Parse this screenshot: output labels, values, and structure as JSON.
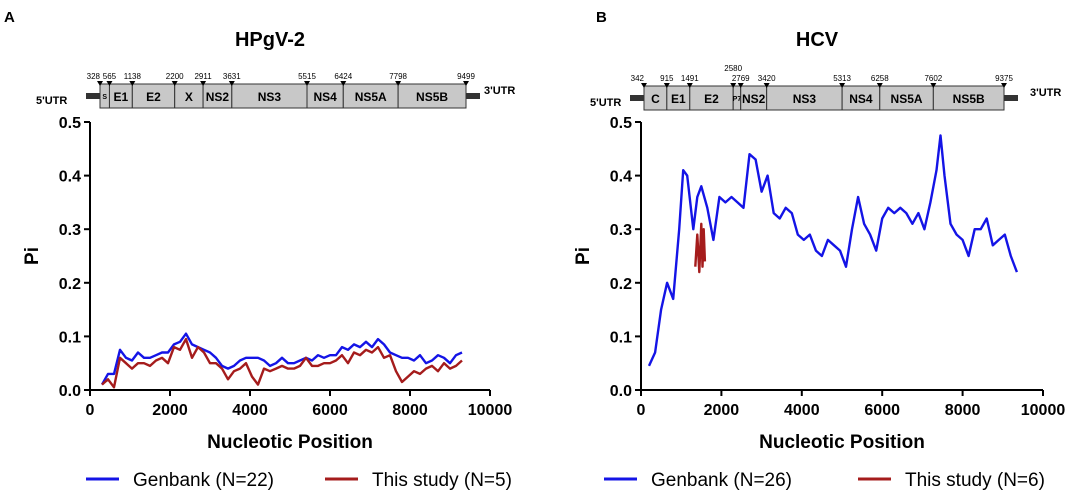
{
  "chart_data": [
    {
      "panel": "A",
      "type": "line",
      "title": "HPgV-2",
      "xlabel": "Nucleotic Position",
      "ylabel": "Pi",
      "xlim": [
        0,
        10000
      ],
      "ylim": [
        0,
        0.5
      ],
      "xticks": [
        "0",
        "2000",
        "4000",
        "6000",
        "8000",
        "10000"
      ],
      "yticks": [
        "0.0",
        "0.1",
        "0.2",
        "0.3",
        "0.4",
        "0.5"
      ],
      "grid": false,
      "legend_position": "bottom",
      "genome": {
        "utr5": "5'UTR",
        "utr3": "3'UTR",
        "start": 328,
        "end": 9499,
        "boundaries": [
          {
            "label": "328",
            "pos": 328
          },
          {
            "label": "565",
            "pos": 565
          },
          {
            "label": "1138",
            "pos": 1138
          },
          {
            "label": "2200",
            "pos": 2200
          },
          {
            "label": "2911",
            "pos": 2911
          },
          {
            "label": "3631",
            "pos": 3631
          },
          {
            "label": "5515",
            "pos": 5515
          },
          {
            "label": "6424",
            "pos": 6424
          },
          {
            "label": "7798",
            "pos": 7798
          },
          {
            "label": "9499",
            "pos": 9499
          }
        ],
        "genes": [
          {
            "name": "S",
            "start": 328,
            "end": 565
          },
          {
            "name": "E1",
            "start": 565,
            "end": 1138
          },
          {
            "name": "E2",
            "start": 1138,
            "end": 2200
          },
          {
            "name": "X",
            "start": 2200,
            "end": 2911
          },
          {
            "name": "NS2",
            "start": 2911,
            "end": 3631
          },
          {
            "name": "NS3",
            "start": 3631,
            "end": 5515
          },
          {
            "name": "NS4",
            "start": 5515,
            "end": 6424
          },
          {
            "name": "NS5A",
            "start": 6424,
            "end": 7798
          },
          {
            "name": "NS5B",
            "start": 7798,
            "end": 9499
          }
        ]
      },
      "series": [
        {
          "name": "Genbank (N=22)",
          "color": "#1414e6",
          "x": [
            300,
            450,
            600,
            750,
            900,
            1050,
            1200,
            1350,
            1500,
            1650,
            1800,
            1950,
            2100,
            2250,
            2400,
            2550,
            2700,
            2850,
            3000,
            3150,
            3300,
            3450,
            3600,
            3750,
            3900,
            4050,
            4200,
            4350,
            4500,
            4650,
            4800,
            4950,
            5100,
            5250,
            5400,
            5550,
            5700,
            5850,
            6000,
            6150,
            6300,
            6450,
            6600,
            6750,
            6900,
            7050,
            7200,
            7350,
            7500,
            7650,
            7800,
            7950,
            8100,
            8250,
            8400,
            8550,
            8700,
            8850,
            9000,
            9150,
            9300
          ],
          "y": [
            0.01,
            0.03,
            0.03,
            0.075,
            0.06,
            0.055,
            0.07,
            0.06,
            0.06,
            0.065,
            0.07,
            0.07,
            0.085,
            0.09,
            0.105,
            0.085,
            0.08,
            0.075,
            0.07,
            0.06,
            0.045,
            0.04,
            0.045,
            0.055,
            0.06,
            0.06,
            0.06,
            0.055,
            0.045,
            0.05,
            0.06,
            0.05,
            0.05,
            0.055,
            0.06,
            0.055,
            0.065,
            0.06,
            0.065,
            0.065,
            0.08,
            0.075,
            0.085,
            0.08,
            0.09,
            0.08,
            0.095,
            0.085,
            0.07,
            0.065,
            0.06,
            0.06,
            0.055,
            0.065,
            0.05,
            0.055,
            0.065,
            0.06,
            0.05,
            0.065,
            0.07
          ]
        },
        {
          "name": "This study (N=5)",
          "color": "#a51c1c",
          "x": [
            300,
            450,
            600,
            750,
            900,
            1050,
            1200,
            1350,
            1500,
            1650,
            1800,
            1950,
            2100,
            2250,
            2400,
            2550,
            2700,
            2850,
            3000,
            3150,
            3300,
            3450,
            3600,
            3750,
            3900,
            4050,
            4200,
            4350,
            4500,
            4650,
            4800,
            4950,
            5100,
            5250,
            5400,
            5550,
            5700,
            5850,
            6000,
            6150,
            6300,
            6450,
            6600,
            6750,
            6900,
            7050,
            7200,
            7350,
            7500,
            7650,
            7800,
            7950,
            8100,
            8250,
            8400,
            8550,
            8700,
            8850,
            9000,
            9150,
            9300
          ],
          "y": [
            0.01,
            0.02,
            0.005,
            0.06,
            0.05,
            0.04,
            0.05,
            0.05,
            0.045,
            0.055,
            0.06,
            0.05,
            0.08,
            0.075,
            0.095,
            0.06,
            0.08,
            0.07,
            0.05,
            0.05,
            0.04,
            0.02,
            0.035,
            0.04,
            0.05,
            0.025,
            0.01,
            0.04,
            0.035,
            0.04,
            0.045,
            0.04,
            0.04,
            0.045,
            0.06,
            0.045,
            0.045,
            0.05,
            0.05,
            0.055,
            0.065,
            0.05,
            0.07,
            0.065,
            0.075,
            0.07,
            0.08,
            0.06,
            0.065,
            0.035,
            0.015,
            0.025,
            0.035,
            0.03,
            0.04,
            0.045,
            0.035,
            0.05,
            0.04,
            0.045,
            0.055
          ]
        }
      ]
    },
    {
      "panel": "B",
      "type": "line",
      "title": "HCV",
      "xlabel": "Nucleotic Position",
      "ylabel": "Pi",
      "xlim": [
        0,
        10000
      ],
      "ylim": [
        0,
        0.5
      ],
      "xticks": [
        "0",
        "2000",
        "4000",
        "6000",
        "8000",
        "10000"
      ],
      "yticks": [
        "0.0",
        "0.1",
        "0.2",
        "0.3",
        "0.4",
        "0.5"
      ],
      "grid": false,
      "legend_position": "bottom",
      "genome": {
        "utr5": "5'UTR",
        "utr3": "3'UTR",
        "start": 342,
        "end": 9375,
        "boundaries": [
          {
            "label": "342",
            "pos": 342
          },
          {
            "label": "915",
            "pos": 915
          },
          {
            "label": "1491",
            "pos": 1491
          },
          {
            "label": "2580",
            "pos": 2580
          },
          {
            "label": "2769",
            "pos": 2769
          },
          {
            "label": "3420",
            "pos": 3420
          },
          {
            "label": "5313",
            "pos": 5313
          },
          {
            "label": "6258",
            "pos": 6258
          },
          {
            "label": "7602",
            "pos": 7602
          },
          {
            "label": "9375",
            "pos": 9375
          }
        ],
        "genes": [
          {
            "name": "C",
            "start": 342,
            "end": 915
          },
          {
            "name": "E1",
            "start": 915,
            "end": 1491
          },
          {
            "name": "E2",
            "start": 1491,
            "end": 2580
          },
          {
            "name": "P7",
            "start": 2580,
            "end": 2769
          },
          {
            "name": "NS2",
            "start": 2769,
            "end": 3420
          },
          {
            "name": "NS3",
            "start": 3420,
            "end": 5313
          },
          {
            "name": "NS4",
            "start": 5313,
            "end": 6258
          },
          {
            "name": "NS5A",
            "start": 6258,
            "end": 7602
          },
          {
            "name": "NS5B",
            "start": 7602,
            "end": 9375
          }
        ]
      },
      "series": [
        {
          "name": "Genbank (N=26)",
          "color": "#1414e6",
          "x": [
            200,
            350,
            500,
            650,
            800,
            950,
            1050,
            1150,
            1300,
            1400,
            1500,
            1650,
            1800,
            1950,
            2100,
            2250,
            2400,
            2550,
            2700,
            2850,
            3000,
            3150,
            3300,
            3450,
            3600,
            3750,
            3900,
            4050,
            4200,
            4350,
            4500,
            4650,
            4800,
            4950,
            5100,
            5250,
            5400,
            5550,
            5700,
            5850,
            6000,
            6150,
            6300,
            6450,
            6600,
            6750,
            6900,
            7050,
            7200,
            7350,
            7450,
            7550,
            7700,
            7850,
            8000,
            8150,
            8300,
            8450,
            8600,
            8750,
            8900,
            9050,
            9200,
            9350
          ],
          "y": [
            0.045,
            0.07,
            0.15,
            0.2,
            0.17,
            0.3,
            0.41,
            0.4,
            0.3,
            0.36,
            0.38,
            0.34,
            0.28,
            0.36,
            0.35,
            0.36,
            0.35,
            0.34,
            0.44,
            0.43,
            0.37,
            0.4,
            0.33,
            0.32,
            0.34,
            0.33,
            0.29,
            0.28,
            0.29,
            0.26,
            0.25,
            0.28,
            0.27,
            0.26,
            0.23,
            0.3,
            0.36,
            0.31,
            0.29,
            0.26,
            0.32,
            0.34,
            0.33,
            0.34,
            0.33,
            0.31,
            0.33,
            0.3,
            0.35,
            0.41,
            0.475,
            0.4,
            0.31,
            0.29,
            0.28,
            0.25,
            0.3,
            0.3,
            0.32,
            0.27,
            0.28,
            0.29,
            0.25,
            0.22
          ]
        },
        {
          "name": "This study (N=6)",
          "color": "#a51c1c",
          "x": [
            1350,
            1400,
            1450,
            1500,
            1530,
            1560,
            1590
          ],
          "y": [
            0.23,
            0.29,
            0.22,
            0.31,
            0.23,
            0.3,
            0.24
          ]
        }
      ]
    }
  ]
}
